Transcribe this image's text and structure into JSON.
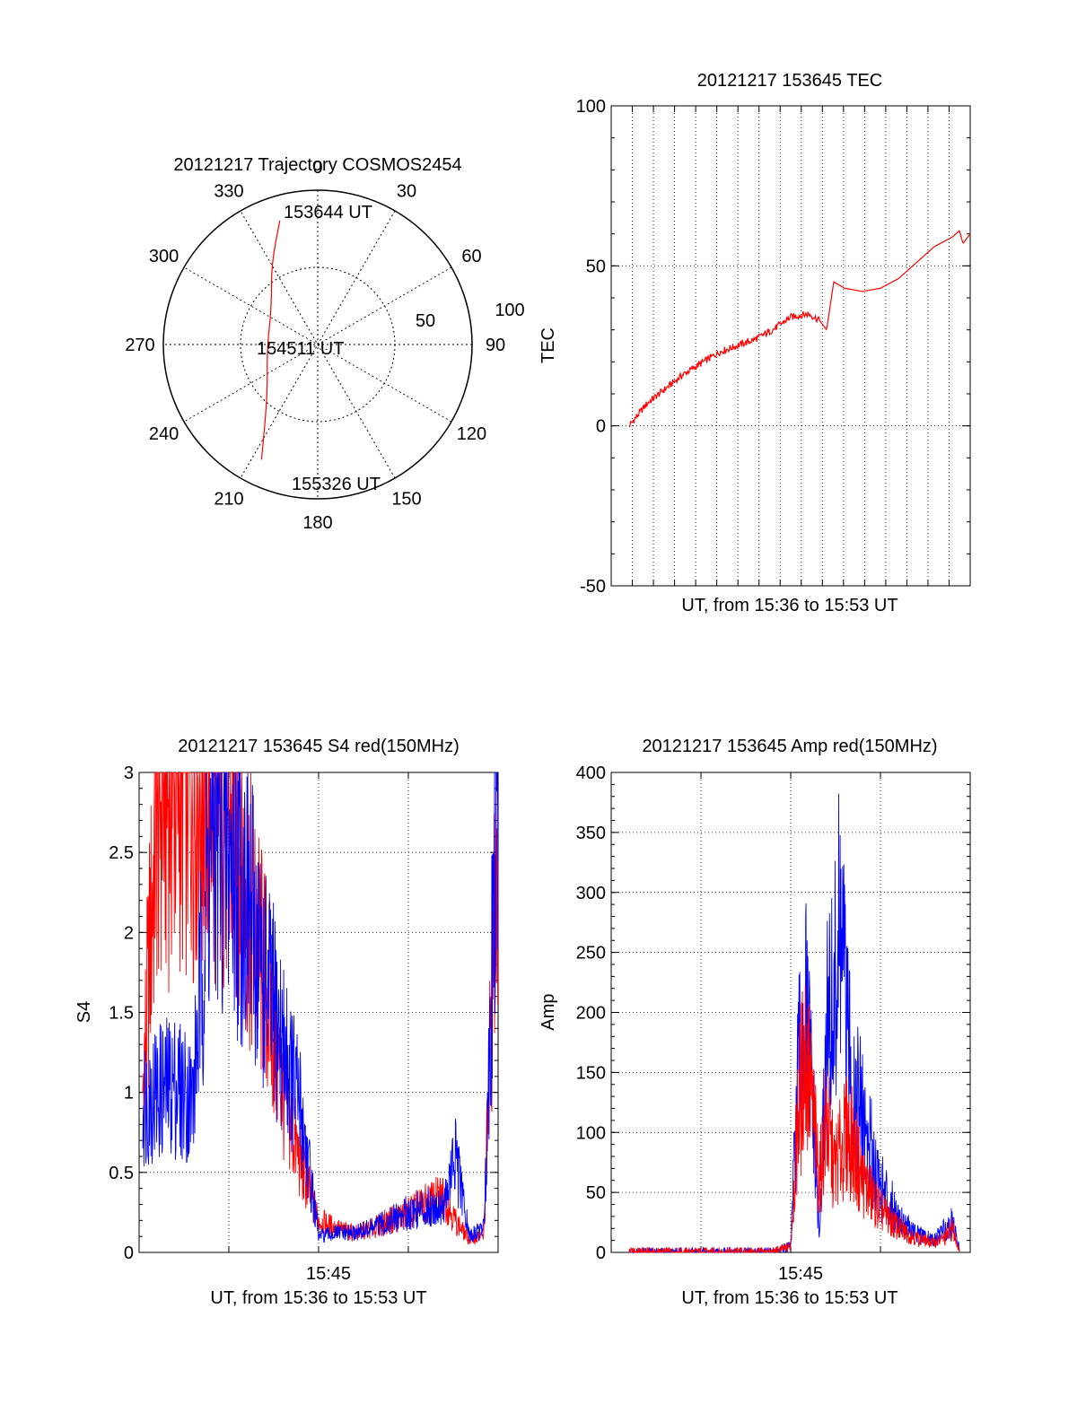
{
  "chart_data": [
    {
      "type": "polar",
      "title": "20121217 Trajectory COSMOS2454",
      "azimuth_labels": [
        "0",
        "30",
        "60",
        "90",
        "120",
        "150",
        "180",
        "210",
        "240",
        "270",
        "300",
        "330"
      ],
      "radial_labels": [
        "50",
        "100"
      ],
      "rlim": [
        0,
        100
      ],
      "grid": true,
      "series": [
        {
          "color": "#ff0000",
          "points": [
            {
              "az": 343,
              "r": 84
            },
            {
              "az": 330,
              "r": 60
            },
            {
              "az": 308,
              "r": 38
            },
            {
              "az": 265,
              "r": 33
            },
            {
              "az": 225,
              "r": 46
            },
            {
              "az": 206,
              "r": 83
            }
          ]
        }
      ],
      "annotations": [
        "153644 UT",
        "154511 UT",
        "155326 UT"
      ]
    },
    {
      "type": "line",
      "title": "20121217 153645 TEC",
      "xlabel": "UT, from 15:36 to 15:53 UT",
      "ylabel": "TEC",
      "ylim": [
        -50,
        100
      ],
      "yticks": [
        "-50",
        "0",
        "50",
        "100"
      ],
      "grid": true,
      "series": [
        {
          "color": "#ff0000",
          "x": [
            0.05,
            0.1,
            0.2,
            0.3,
            0.4,
            0.45,
            0.5,
            0.55,
            0.58,
            0.6,
            0.62,
            0.65,
            0.7,
            0.75,
            0.8,
            0.85,
            0.9,
            0.95,
            0.97,
            0.98,
            1.0
          ],
          "y": [
            0,
            7,
            16,
            23,
            27,
            30,
            34,
            35,
            33,
            30,
            45,
            43,
            42,
            43,
            46,
            51,
            56,
            59,
            61,
            57,
            60
          ]
        }
      ]
    },
    {
      "type": "line",
      "title": "20121217 153645 S4 red(150MHz)",
      "xlabel": "UT, from 15:36 to 15:53 UT",
      "ylabel": "S4",
      "ylim": [
        0,
        3
      ],
      "yticks": [
        "0",
        "0.5",
        "1",
        "1.5",
        "2",
        "2.5",
        "3"
      ],
      "xticks": [
        "15:45"
      ],
      "grid": true,
      "series": [
        {
          "color": "#ff0000",
          "x": [
            0.01,
            0.05,
            0.1,
            0.2,
            0.28,
            0.32,
            0.36,
            0.4,
            0.45,
            0.5,
            0.55,
            0.6,
            0.65,
            0.7,
            0.75,
            0.8,
            0.85,
            0.88,
            0.92,
            0.96,
            1.0
          ],
          "y": [
            1.0,
            2.8,
            3.0,
            3.0,
            2.5,
            2.0,
            1.6,
            1.0,
            0.55,
            0.2,
            0.15,
            0.12,
            0.15,
            0.2,
            0.25,
            0.3,
            0.35,
            0.2,
            0.08,
            0.1,
            2.7
          ]
        },
        {
          "color": "#0000ff",
          "x": [
            0.01,
            0.05,
            0.1,
            0.15,
            0.2,
            0.25,
            0.3,
            0.35,
            0.4,
            0.45,
            0.5,
            0.55,
            0.6,
            0.65,
            0.7,
            0.75,
            0.8,
            0.85,
            0.88,
            0.92,
            0.96,
            1.0
          ],
          "y": [
            0.95,
            1.0,
            1.05,
            0.95,
            2.6,
            2.5,
            2.2,
            1.7,
            1.3,
            0.9,
            0.1,
            0.12,
            0.12,
            0.15,
            0.2,
            0.25,
            0.28,
            0.3,
            0.6,
            0.1,
            0.15,
            3.0
          ]
        }
      ]
    },
    {
      "type": "line",
      "title": "20121217 153645 Amp red(150MHz)",
      "xlabel": "UT, from 15:36 to 15:53 UT",
      "ylabel": "Amp",
      "ylim": [
        0,
        400
      ],
      "yticks": [
        "0",
        "50",
        "100",
        "150",
        "200",
        "250",
        "300",
        "350",
        "400"
      ],
      "xticks": [
        "15:45"
      ],
      "grid": true,
      "series": [
        {
          "color": "#ff0000",
          "x": [
            0.05,
            0.45,
            0.5,
            0.52,
            0.54,
            0.56,
            0.58,
            0.6,
            0.62,
            0.64,
            0.66,
            0.7,
            0.75,
            0.8,
            0.85,
            0.9,
            0.93,
            0.95,
            0.97
          ],
          "y": [
            0,
            0,
            5,
            110,
            170,
            120,
            60,
            110,
            70,
            85,
            100,
            60,
            35,
            20,
            12,
            8,
            12,
            20,
            2
          ]
        },
        {
          "color": "#0000ff",
          "x": [
            0.05,
            0.45,
            0.5,
            0.52,
            0.54,
            0.56,
            0.58,
            0.6,
            0.62,
            0.64,
            0.66,
            0.7,
            0.75,
            0.8,
            0.85,
            0.9,
            0.93,
            0.95,
            0.97
          ],
          "y": [
            0,
            0,
            5,
            140,
            200,
            130,
            10,
            180,
            200,
            270,
            160,
            110,
            55,
            30,
            15,
            10,
            20,
            25,
            2
          ]
        }
      ]
    }
  ]
}
